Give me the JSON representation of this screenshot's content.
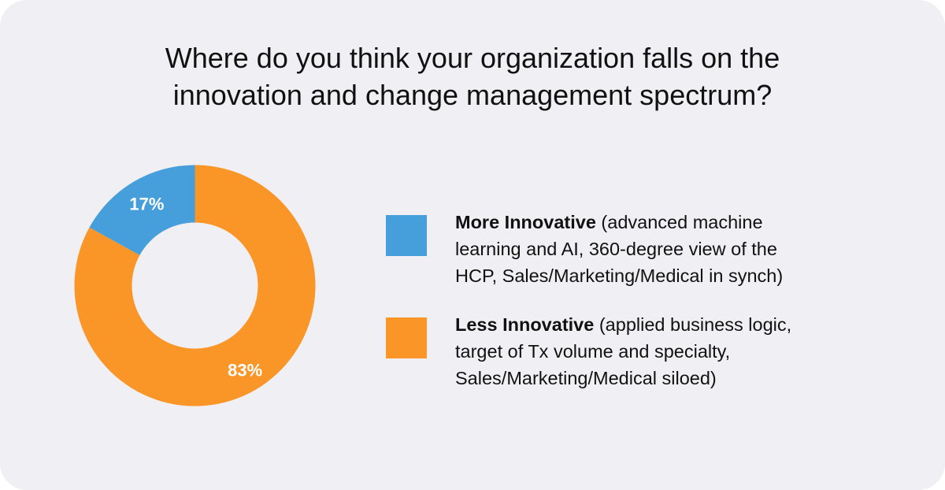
{
  "title": {
    "line1": "Where do you think your organization falls on the",
    "line2": "innovation and change management spectrum?"
  },
  "colors": {
    "more_innovative": "#469fdb",
    "less_innovative": "#fa9627",
    "background": "#f0f0f4"
  },
  "chart_data": {
    "type": "pie",
    "donut": true,
    "categories": [
      "More Innovative",
      "Less Innovative"
    ],
    "values": [
      17,
      83
    ],
    "labels": [
      "17%",
      "83%"
    ],
    "legend_position": "right"
  },
  "legend": [
    {
      "name": "More Innovative",
      "desc_line1": " (advanced machine",
      "desc_line2": "learning and AI, 360-degree view of the",
      "desc_line3": "HCP, Sales/Marketing/Medical in synch)"
    },
    {
      "name": "Less Innovative",
      "desc_line1": " (applied business logic,",
      "desc_line2": "target of Tx volume and specialty,",
      "desc_line3": "Sales/Marketing/Medical siloed)"
    }
  ]
}
